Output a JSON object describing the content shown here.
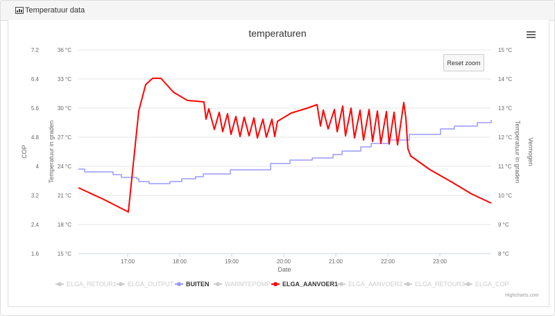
{
  "panel": {
    "title": "Temperatuur data",
    "icon": "bar-chart-icon"
  },
  "toolbar": {
    "reset_zoom": "Reset zoom",
    "menu_icon": "hamburger-menu-icon"
  },
  "credit": "Highcharts.com",
  "chart_data": {
    "type": "line",
    "title": "temperaturen",
    "xlabel": "Date",
    "x_unit": "hour of day",
    "xlim": [
      16.053,
      23.987
    ],
    "x_ticks": [
      {
        "v": 17,
        "label": "17:00"
      },
      {
        "v": 18,
        "label": "18:00"
      },
      {
        "v": 19,
        "label": "19:00"
      },
      {
        "v": 20,
        "label": "20:00"
      },
      {
        "v": 21,
        "label": "21:00"
      },
      {
        "v": 22,
        "label": "22:00"
      },
      {
        "v": 23,
        "label": "23:00"
      }
    ],
    "y_axes": {
      "cop": {
        "title": "COP",
        "ylim": [
          1.6,
          7.2
        ],
        "ticks": [
          "7.2",
          "6.4",
          "5.6",
          "4.8",
          "4",
          "3.2",
          "2.4",
          "1.6"
        ]
      },
      "temp": {
        "title": "Temperatuur in graden",
        "ylim": [
          15,
          36
        ],
        "ticks": [
          "36 °C",
          "33 °C",
          "30 °C",
          "27 °C",
          "24 °C",
          "21 °C",
          "18 °C",
          "15 °C"
        ]
      },
      "temp_right": {
        "title": "Temperatuur in graden",
        "ylim": [
          8,
          15
        ],
        "ticks": [
          "15 °C",
          "14 °C",
          "13 °C",
          "12 °C",
          "11 °C",
          "10 °C",
          "9 °C",
          "8 °C"
        ]
      },
      "power": {
        "title": "Vermogen"
      }
    },
    "grid": true,
    "legend_position": "bottom-center",
    "series": [
      {
        "name": "ELGA_RETOUR1",
        "visible": false,
        "color": "#cccccc",
        "points": []
      },
      {
        "name": "ELGA_OUTPUT",
        "visible": false,
        "color": "#cccccc",
        "points": []
      },
      {
        "name": "BUITEN",
        "visible": true,
        "color": "#9999ff",
        "axis": "temp_right",
        "step": true,
        "points": [
          [
            16.053,
            10.905
          ],
          [
            16.173,
            10.81
          ],
          [
            16.72,
            10.714
          ],
          [
            16.88,
            10.62
          ],
          [
            17.173,
            10.571
          ],
          [
            17.213,
            10.476
          ],
          [
            17.413,
            10.405
          ],
          [
            17.813,
            10.476
          ],
          [
            18.04,
            10.571
          ],
          [
            18.307,
            10.643
          ],
          [
            18.453,
            10.738
          ],
          [
            18.973,
            10.881
          ],
          [
            19.747,
            11.095
          ],
          [
            20.12,
            11.214
          ],
          [
            20.547,
            11.286
          ],
          [
            20.947,
            11.405
          ],
          [
            21.12,
            11.524
          ],
          [
            21.48,
            11.667
          ],
          [
            21.68,
            11.786
          ],
          [
            22.013,
            11.905
          ],
          [
            22.413,
            12.095
          ],
          [
            23.013,
            12.286
          ],
          [
            23.28,
            12.38
          ],
          [
            23.72,
            12.5
          ],
          [
            23.987,
            12.595
          ]
        ]
      },
      {
        "name": "WARMTEPOMP",
        "visible": false,
        "color": "#cccccc",
        "points": []
      },
      {
        "name": "ELGA_AANVOER1",
        "visible": true,
        "color": "#ff0000",
        "axis": "temp",
        "points": [
          [
            16.053,
            21.79
          ],
          [
            16.547,
            20.57
          ],
          [
            17.013,
            19.29
          ],
          [
            17.213,
            29.71
          ],
          [
            17.347,
            32.43
          ],
          [
            17.48,
            33.07
          ],
          [
            17.64,
            33.07
          ],
          [
            17.88,
            31.64
          ],
          [
            18.147,
            30.79
          ],
          [
            18.467,
            30.64
          ],
          [
            18.507,
            28.86
          ],
          [
            18.56,
            29.93
          ],
          [
            18.667,
            27.79
          ],
          [
            18.76,
            29.57
          ],
          [
            18.827,
            27.57
          ],
          [
            18.92,
            29.43
          ],
          [
            18.987,
            27.29
          ],
          [
            19.08,
            29.14
          ],
          [
            19.16,
            27.07
          ],
          [
            19.24,
            29.07
          ],
          [
            19.333,
            27.14
          ],
          [
            19.427,
            29.0
          ],
          [
            19.493,
            26.93
          ],
          [
            19.6,
            28.86
          ],
          [
            19.667,
            27.0
          ],
          [
            19.773,
            28.86
          ],
          [
            19.827,
            27.07
          ],
          [
            19.88,
            28.64
          ],
          [
            20.147,
            29.5
          ],
          [
            20.413,
            29.93
          ],
          [
            20.64,
            30.36
          ],
          [
            20.707,
            28.14
          ],
          [
            20.76,
            29.79
          ],
          [
            20.853,
            27.86
          ],
          [
            20.973,
            29.86
          ],
          [
            21.027,
            27.57
          ],
          [
            21.133,
            30.21
          ],
          [
            21.187,
            27.14
          ],
          [
            21.293,
            30.0
          ],
          [
            21.36,
            26.93
          ],
          [
            21.467,
            29.79
          ],
          [
            21.533,
            26.71
          ],
          [
            21.64,
            29.86
          ],
          [
            21.707,
            26.57
          ],
          [
            21.8,
            29.71
          ],
          [
            21.867,
            26.36
          ],
          [
            21.973,
            29.64
          ],
          [
            22.027,
            26.29
          ],
          [
            22.12,
            29.57
          ],
          [
            22.187,
            26.21
          ],
          [
            22.227,
            27.57
          ],
          [
            22.307,
            30.57
          ],
          [
            22.347,
            29.0
          ],
          [
            22.387,
            25.79
          ],
          [
            22.44,
            25.07
          ],
          [
            22.813,
            23.64
          ],
          [
            23.213,
            22.43
          ],
          [
            23.613,
            21.14
          ],
          [
            23.987,
            20.21
          ]
        ]
      },
      {
        "name": "ELGA_AANVOER2",
        "visible": false,
        "color": "#cccccc",
        "points": []
      },
      {
        "name": "ELGA_RETOUR2",
        "visible": false,
        "color": "#cccccc",
        "points": []
      },
      {
        "name": "ELGA_COP",
        "visible": false,
        "color": "#cccccc",
        "points": []
      }
    ]
  }
}
